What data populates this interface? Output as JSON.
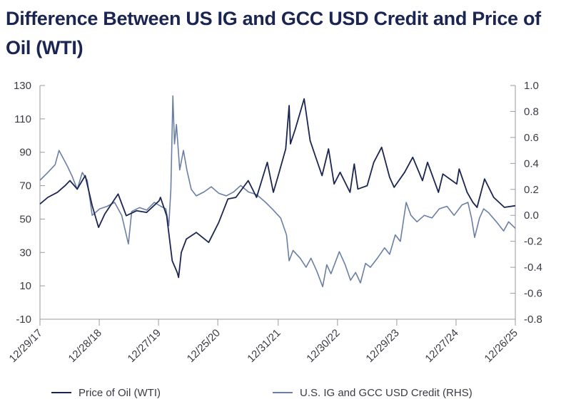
{
  "title": "Difference Between US IG and GCC USD Credit and Price of Oil (WTI)",
  "colors": {
    "oil": "#1b2552",
    "credit": "#6b7fa6",
    "axis": "#9a9aa2"
  },
  "chart_data": {
    "type": "line",
    "title": "Difference Between US IG and GCC USD Credit and Price of Oil (WTI)",
    "y_left": {
      "ylim": [
        -10,
        130
      ],
      "ticks": [
        -10,
        10,
        30,
        50,
        70,
        90,
        110,
        130
      ]
    },
    "y_right": {
      "ylim": [
        -0.8,
        1.0
      ],
      "ticks": [
        -0.8,
        -0.6,
        -0.4,
        -0.2,
        0.0,
        0.2,
        0.4,
        0.6,
        0.8,
        1.0
      ],
      "tick_labels": [
        "-0.8",
        "-0.6",
        "-0.4",
        "-0.2",
        "0.0",
        "0.2",
        "0.4",
        "0.6",
        "0.8",
        "1.0"
      ]
    },
    "x_ticks": [
      "12/29/17",
      "12/28/18",
      "12/27/19",
      "12/25/20",
      "12/31/21",
      "12/30/22",
      "12/29/23",
      "12/27/24",
      "12/26/25"
    ],
    "x_tick_dates": [
      "2017-12-29",
      "2018-12-28",
      "2019-12-27",
      "2020-12-25",
      "2021-12-31",
      "2022-12-30",
      "2023-12-29",
      "2024-12-27",
      "2025-12-26"
    ],
    "legend_position": "bottom",
    "grid": false,
    "series": [
      {
        "name": "Price of Oil (WTI)",
        "axis": "left",
        "color": "#1b2552",
        "points": [
          [
            "2017-12-29",
            59
          ],
          [
            "2018-02-15",
            63
          ],
          [
            "2018-04-15",
            66
          ],
          [
            "2018-06-01",
            70
          ],
          [
            "2018-07-01",
            73
          ],
          [
            "2018-08-15",
            68
          ],
          [
            "2018-10-03",
            76
          ],
          [
            "2018-11-15",
            58
          ],
          [
            "2018-12-24",
            45
          ],
          [
            "2019-01-31",
            53
          ],
          [
            "2019-04-23",
            65
          ],
          [
            "2019-06-12",
            52
          ],
          [
            "2019-08-15",
            55
          ],
          [
            "2019-10-15",
            54
          ],
          [
            "2019-12-31",
            61
          ],
          [
            "2020-01-08",
            63
          ],
          [
            "2020-02-15",
            52
          ],
          [
            "2020-03-20",
            25
          ],
          [
            "2020-04-20",
            18
          ],
          [
            "2020-04-28",
            15
          ],
          [
            "2020-05-15",
            30
          ],
          [
            "2020-06-15",
            38
          ],
          [
            "2020-08-15",
            42
          ],
          [
            "2020-10-30",
            36
          ],
          [
            "2020-12-31",
            48
          ],
          [
            "2021-02-25",
            62
          ],
          [
            "2021-04-15",
            63
          ],
          [
            "2021-06-30",
            73
          ],
          [
            "2021-08-20",
            63
          ],
          [
            "2021-10-25",
            84
          ],
          [
            "2021-12-01",
            66
          ],
          [
            "2021-12-31",
            76
          ],
          [
            "2022-02-15",
            92
          ],
          [
            "2022-03-08",
            118
          ],
          [
            "2022-03-16",
            95
          ],
          [
            "2022-04-15",
            104
          ],
          [
            "2022-06-08",
            122
          ],
          [
            "2022-07-15",
            97
          ],
          [
            "2022-08-15",
            88
          ],
          [
            "2022-09-26",
            76
          ],
          [
            "2022-11-05",
            92
          ],
          [
            "2022-12-09",
            71
          ],
          [
            "2023-01-15",
            78
          ],
          [
            "2023-03-17",
            66
          ],
          [
            "2023-04-12",
            83
          ],
          [
            "2023-05-04",
            68
          ],
          [
            "2023-06-30",
            70
          ],
          [
            "2023-08-10",
            84
          ],
          [
            "2023-09-27",
            93
          ],
          [
            "2023-11-15",
            75
          ],
          [
            "2023-12-13",
            69
          ],
          [
            "2024-02-15",
            78
          ],
          [
            "2024-04-05",
            87
          ],
          [
            "2024-06-04",
            73
          ],
          [
            "2024-07-05",
            84
          ],
          [
            "2024-09-10",
            66
          ],
          [
            "2024-10-07",
            77
          ],
          [
            "2024-12-31",
            71
          ],
          [
            "2025-01-15",
            80
          ],
          [
            "2025-03-05",
            66
          ],
          [
            "2025-04-09",
            60
          ],
          [
            "2025-05-05",
            57
          ],
          [
            "2025-06-20",
            74
          ],
          [
            "2025-08-15",
            63
          ],
          [
            "2025-10-20",
            57
          ],
          [
            "2025-12-26",
            58
          ]
        ]
      },
      {
        "name": "U.S. IG and GCC USD Credit (RHS)",
        "axis": "right",
        "color": "#6b7fa6",
        "points": [
          [
            "2017-12-29",
            0.27
          ],
          [
            "2018-02-15",
            0.33
          ],
          [
            "2018-04-01",
            0.39
          ],
          [
            "2018-04-25",
            0.5
          ],
          [
            "2018-06-15",
            0.38
          ],
          [
            "2018-07-15",
            0.3
          ],
          [
            "2018-08-15",
            0.2
          ],
          [
            "2018-09-15",
            0.33
          ],
          [
            "2018-10-15",
            0.27
          ],
          [
            "2018-11-15",
            0.0
          ],
          [
            "2018-12-31",
            0.05
          ],
          [
            "2019-02-15",
            0.07
          ],
          [
            "2019-04-01",
            0.1
          ],
          [
            "2019-05-15",
            0.0
          ],
          [
            "2019-06-25",
            -0.22
          ],
          [
            "2019-07-15",
            0.03
          ],
          [
            "2019-09-01",
            0.06
          ],
          [
            "2019-10-15",
            0.04
          ],
          [
            "2019-12-01",
            0.1
          ],
          [
            "2020-01-10",
            0.07
          ],
          [
            "2020-02-10",
            0.05
          ],
          [
            "2020-02-28",
            -0.08
          ],
          [
            "2020-03-12",
            0.2
          ],
          [
            "2020-03-24",
            0.92
          ],
          [
            "2020-04-03",
            0.55
          ],
          [
            "2020-04-15",
            0.7
          ],
          [
            "2020-05-05",
            0.35
          ],
          [
            "2020-05-28",
            0.5
          ],
          [
            "2020-06-18",
            0.35
          ],
          [
            "2020-07-15",
            0.2
          ],
          [
            "2020-08-15",
            0.15
          ],
          [
            "2020-10-01",
            0.18
          ],
          [
            "2020-11-15",
            0.22
          ],
          [
            "2020-12-31",
            0.17
          ],
          [
            "2021-02-15",
            0.15
          ],
          [
            "2021-04-01",
            0.18
          ],
          [
            "2021-05-15",
            0.23
          ],
          [
            "2021-07-01",
            0.18
          ],
          [
            "2021-08-20",
            0.16
          ],
          [
            "2021-10-15",
            0.1
          ],
          [
            "2021-12-01",
            0.04
          ],
          [
            "2022-01-15",
            -0.02
          ],
          [
            "2022-02-20",
            -0.15
          ],
          [
            "2022-03-08",
            -0.35
          ],
          [
            "2022-04-01",
            -0.27
          ],
          [
            "2022-05-15",
            -0.33
          ],
          [
            "2022-06-20",
            -0.4
          ],
          [
            "2022-07-20",
            -0.33
          ],
          [
            "2022-08-25",
            -0.43
          ],
          [
            "2022-09-30",
            -0.55
          ],
          [
            "2022-10-25",
            -0.38
          ],
          [
            "2022-11-20",
            -0.45
          ],
          [
            "2023-01-10",
            -0.28
          ],
          [
            "2023-02-15",
            -0.38
          ],
          [
            "2023-03-20",
            -0.5
          ],
          [
            "2023-04-20",
            -0.44
          ],
          [
            "2023-05-20",
            -0.52
          ],
          [
            "2023-06-20",
            -0.37
          ],
          [
            "2023-07-20",
            -0.4
          ],
          [
            "2023-09-01",
            -0.33
          ],
          [
            "2023-10-15",
            -0.25
          ],
          [
            "2023-11-15",
            -0.3
          ],
          [
            "2023-12-20",
            -0.15
          ],
          [
            "2024-01-20",
            -0.2
          ],
          [
            "2024-02-25",
            0.1
          ],
          [
            "2024-03-25",
            0.0
          ],
          [
            "2024-05-01",
            -0.05
          ],
          [
            "2024-06-15",
            0.0
          ],
          [
            "2024-08-01",
            -0.02
          ],
          [
            "2024-09-15",
            0.05
          ],
          [
            "2024-11-01",
            0.07
          ],
          [
            "2024-12-15",
            0.0
          ],
          [
            "2025-02-01",
            0.08
          ],
          [
            "2025-03-10",
            0.1
          ],
          [
            "2025-04-01",
            -0.02
          ],
          [
            "2025-04-20",
            -0.17
          ],
          [
            "2025-05-20",
            -0.02
          ],
          [
            "2025-06-15",
            0.05
          ],
          [
            "2025-07-15",
            0.02
          ],
          [
            "2025-09-01",
            -0.05
          ],
          [
            "2025-10-15",
            -0.12
          ],
          [
            "2025-11-15",
            -0.05
          ],
          [
            "2025-12-26",
            -0.1
          ]
        ]
      }
    ]
  }
}
